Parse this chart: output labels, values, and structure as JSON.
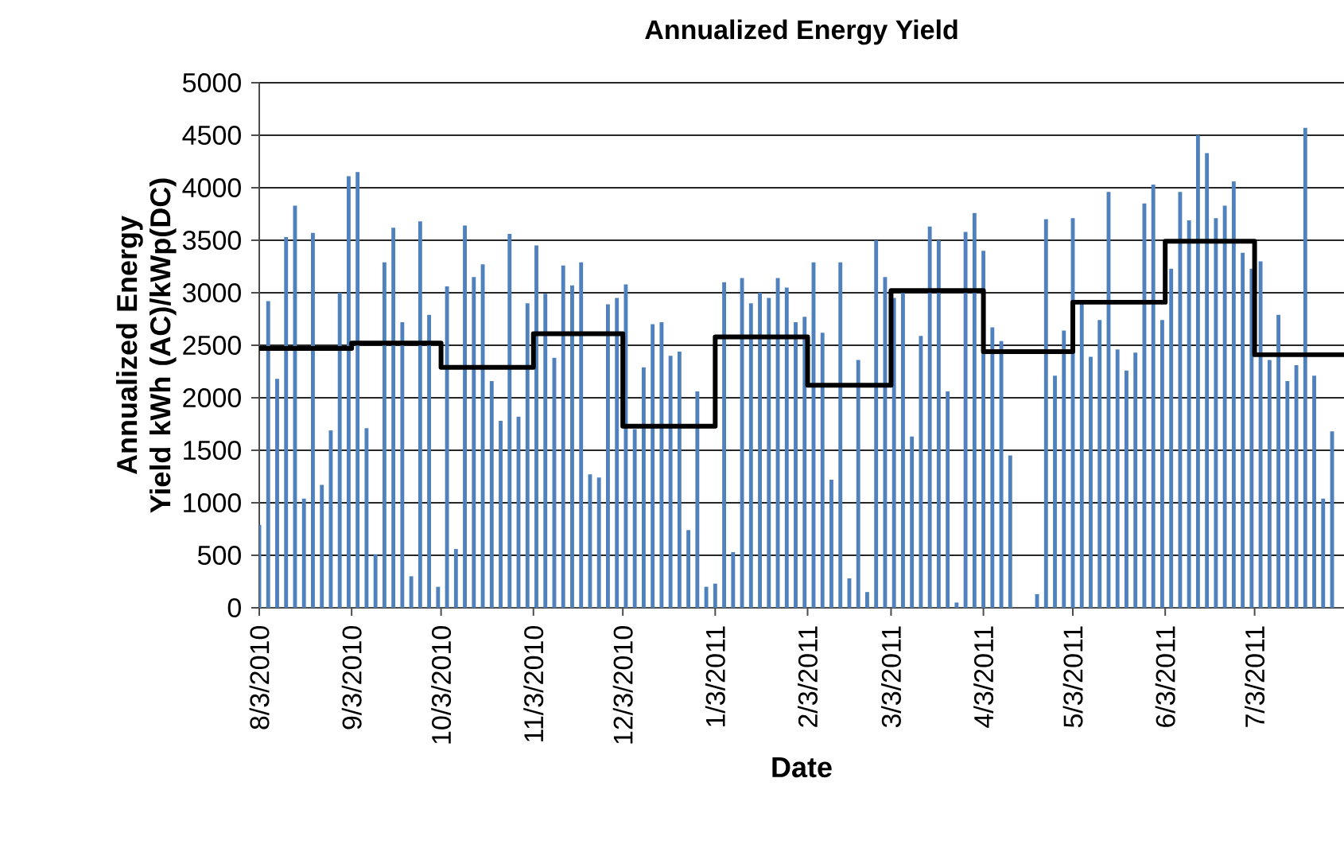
{
  "chart_data": {
    "type": "bar",
    "title": "Annualized Energy Yield",
    "xlabel": "Date",
    "ylabel": "Annualized Energy Yield kWh (AC)/kWp(DC)",
    "xlim": [
      "2010-08-03",
      "2011-08-02"
    ],
    "ylim": [
      0,
      5000
    ],
    "yticks": [
      0,
      500,
      1000,
      1500,
      2000,
      2500,
      3000,
      3500,
      4000,
      4500,
      5000
    ],
    "xticks": [
      {
        "value": "2010-08-03",
        "label": "8/3/2010"
      },
      {
        "value": "2010-09-03",
        "label": "9/3/2010"
      },
      {
        "value": "2010-10-03",
        "label": "10/3/2010"
      },
      {
        "value": "2010-11-03",
        "label": "11/3/2010"
      },
      {
        "value": "2010-12-03",
        "label": "12/3/2010"
      },
      {
        "value": "2011-01-03",
        "label": "1/3/2011"
      },
      {
        "value": "2011-02-03",
        "label": "2/3/2011"
      },
      {
        "value": "2011-03-03",
        "label": "3/3/2011"
      },
      {
        "value": "2011-04-03",
        "label": "4/3/2011"
      },
      {
        "value": "2011-05-03",
        "label": "5/3/2011"
      },
      {
        "value": "2011-06-03",
        "label": "6/3/2011"
      },
      {
        "value": "2011-07-03",
        "label": "7/3/2011"
      }
    ],
    "grid": "y",
    "series": [
      {
        "color": "#4f81bd",
        "x": [
          "2010-08-03",
          "2010-08-06",
          "2010-08-09",
          "2010-08-12",
          "2010-08-15",
          "2010-08-18",
          "2010-08-21",
          "2010-08-24",
          "2010-08-27",
          "2010-08-30",
          "2010-09-02",
          "2010-09-05",
          "2010-09-08",
          "2010-09-11",
          "2010-09-14",
          "2010-09-17",
          "2010-09-20",
          "2010-09-23",
          "2010-09-26",
          "2010-09-29",
          "2010-10-02",
          "2010-10-05",
          "2010-10-08",
          "2010-10-11",
          "2010-10-14",
          "2010-10-17",
          "2010-10-20",
          "2010-10-23",
          "2010-10-26",
          "2010-10-29",
          "2010-11-01",
          "2010-11-04",
          "2010-11-07",
          "2010-11-10",
          "2010-11-13",
          "2010-11-16",
          "2010-11-19",
          "2010-11-22",
          "2010-11-25",
          "2010-11-28",
          "2010-12-01",
          "2010-12-04",
          "2010-12-07",
          "2010-12-10",
          "2010-12-13",
          "2010-12-16",
          "2010-12-19",
          "2010-12-22",
          "2010-12-25",
          "2010-12-28",
          "2010-12-31",
          "2011-01-03",
          "2011-01-06",
          "2011-01-09",
          "2011-01-12",
          "2011-01-15",
          "2011-01-18",
          "2011-01-21",
          "2011-01-24",
          "2011-01-27",
          "2011-01-30",
          "2011-02-02",
          "2011-02-05",
          "2011-02-08",
          "2011-02-11",
          "2011-02-14",
          "2011-02-17",
          "2011-02-20",
          "2011-02-23",
          "2011-02-26",
          "2011-03-01",
          "2011-03-04",
          "2011-03-07",
          "2011-03-10",
          "2011-03-13",
          "2011-03-16",
          "2011-03-19",
          "2011-03-22",
          "2011-03-25",
          "2011-03-28",
          "2011-03-31",
          "2011-04-03",
          "2011-04-06",
          "2011-04-09",
          "2011-04-12",
          "2011-04-15",
          "2011-04-18",
          "2011-04-21",
          "2011-04-24",
          "2011-04-27",
          "2011-04-30",
          "2011-05-03",
          "2011-05-06",
          "2011-05-09",
          "2011-05-12",
          "2011-05-15",
          "2011-05-18",
          "2011-05-21",
          "2011-05-24",
          "2011-05-27",
          "2011-05-30",
          "2011-06-02",
          "2011-06-05",
          "2011-06-08",
          "2011-06-11",
          "2011-06-14",
          "2011-06-17",
          "2011-06-20",
          "2011-06-23",
          "2011-06-26",
          "2011-06-29",
          "2011-07-02",
          "2011-07-05",
          "2011-07-08",
          "2011-07-11",
          "2011-07-14",
          "2011-07-17",
          "2011-07-20",
          "2011-07-23",
          "2011-07-26",
          "2011-07-29"
        ],
        "values": [
          790,
          2920,
          2180,
          3530,
          3830,
          1040,
          3570,
          1170,
          1690,
          3000,
          4110,
          4150,
          1710,
          510,
          3290,
          3620,
          2720,
          300,
          3680,
          2790,
          200,
          3060,
          560,
          3640,
          3150,
          3270,
          2160,
          1780,
          3560,
          1820,
          2900,
          3450,
          2990,
          2380,
          3260,
          3070,
          3290,
          1270,
          1240,
          2890,
          2950,
          3080,
          1700,
          2290,
          2700,
          2720,
          2400,
          2440,
          740,
          2060,
          200,
          230,
          3100,
          530,
          3140,
          2900,
          3000,
          2950,
          3140,
          3050,
          2720,
          2770,
          3290,
          2620,
          1220,
          3290,
          280,
          2360,
          150,
          3500,
          3150,
          2950,
          3000,
          1630,
          2590,
          3630,
          3500,
          2060,
          50,
          3580,
          3760,
          3400,
          2670,
          2540,
          1450,
          null,
          null,
          130,
          3700,
          2210,
          2640,
          3710,
          2920,
          2390,
          2740,
          3960,
          2460,
          2260,
          2430,
          3850,
          4030,
          2740,
          3230,
          3960,
          3690,
          4500,
          4330,
          3710,
          3830,
          4060,
          3380,
          3230,
          3300,
          2360,
          2790,
          2160,
          2310,
          4570,
          2210,
          1040,
          1680
        ]
      },
      {
        "type": "step",
        "color": "#000000",
        "x": [
          "2010-08-03",
          "2010-09-03",
          "2010-10-03",
          "2010-11-03",
          "2010-12-03",
          "2011-01-03",
          "2011-02-03",
          "2011-03-03",
          "2011-04-03",
          "2011-05-03",
          "2011-06-03",
          "2011-07-03",
          "2011-08-02"
        ],
        "values": [
          2470,
          2520,
          2290,
          2610,
          1730,
          2580,
          2120,
          3020,
          2440,
          2910,
          3490,
          2410,
          2410
        ]
      }
    ]
  }
}
